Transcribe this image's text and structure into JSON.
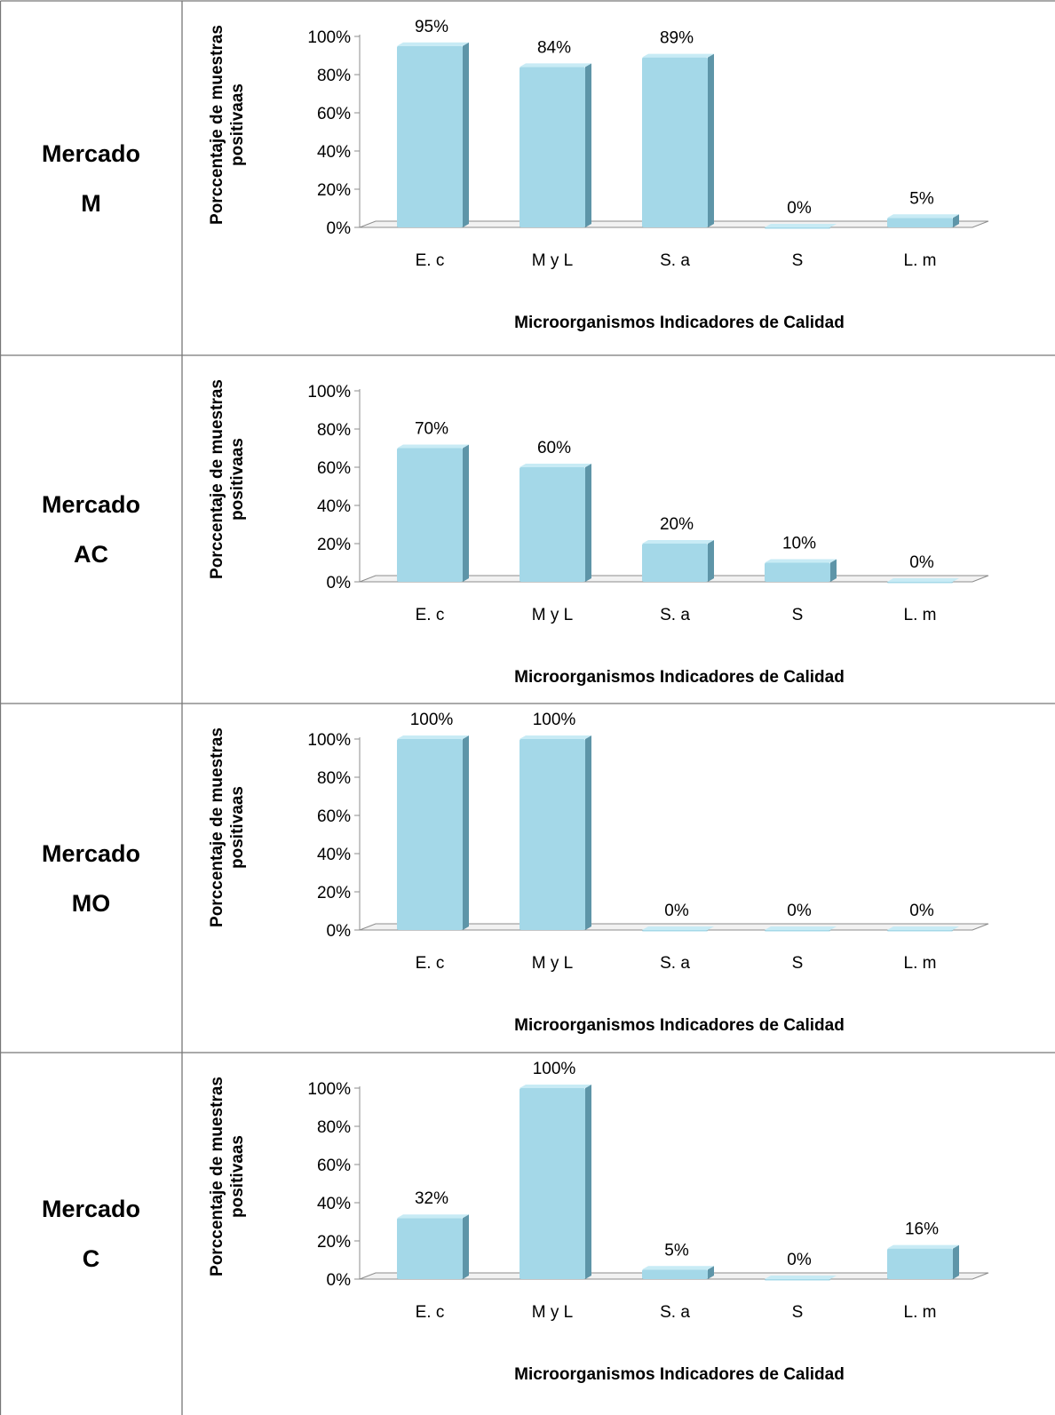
{
  "categories": [
    "E. c",
    "M y L",
    "S. a",
    "S",
    "L. m"
  ],
  "ylabel": "Porccentaje de muestras positivaas",
  "xlabel": "Microorganismos Indicadores de Calidad",
  "yticks": [
    "0%",
    "20%",
    "40%",
    "60%",
    "80%",
    "100%"
  ],
  "rows": [
    {
      "label_line1": "Mercado",
      "label_line2": "M"
    },
    {
      "label_line1": "Mercado",
      "label_line2": "AC"
    },
    {
      "label_line1": "Mercado",
      "label_line2": "MO"
    },
    {
      "label_line1": "Mercado",
      "label_line2": "C"
    }
  ],
  "colors": {
    "bar_front": "#a4d8e8",
    "bar_side": "#5e95a8",
    "bar_top": "#c8ebf5",
    "axis": "#8c8c8c"
  },
  "chart_data": [
    {
      "type": "bar",
      "categories": [
        "E. c",
        "M y L",
        "S. a",
        "S",
        "L. m"
      ],
      "values": [
        95,
        84,
        89,
        0,
        5
      ],
      "value_labels": [
        "95%",
        "84%",
        "89%",
        "0%",
        "5%"
      ],
      "xlabel": "Microorganismos Indicadores de Calidad",
      "ylabel": "Porccentaje de muestras positivaas",
      "ylim": [
        0,
        100
      ],
      "grid": false
    },
    {
      "type": "bar",
      "categories": [
        "E. c",
        "M y L",
        "S. a",
        "S",
        "L. m"
      ],
      "values": [
        70,
        60,
        20,
        10,
        0
      ],
      "value_labels": [
        "70%",
        "60%",
        "20%",
        "10%",
        "0%"
      ],
      "xlabel": "Microorganismos Indicadores de Calidad",
      "ylabel": "Porccentaje de muestras positivaas",
      "ylim": [
        0,
        100
      ],
      "grid": false
    },
    {
      "type": "bar",
      "categories": [
        "E. c",
        "M y L",
        "S. a",
        "S",
        "L. m"
      ],
      "values": [
        100,
        100,
        0,
        0,
        0
      ],
      "value_labels": [
        "100%",
        "100%",
        "0%",
        "0%",
        "0%"
      ],
      "xlabel": "Microorganismos Indicadores de Calidad",
      "ylabel": "Porccentaje de muestras positivaas",
      "ylim": [
        0,
        100
      ],
      "grid": false
    },
    {
      "type": "bar",
      "categories": [
        "E. c",
        "M y L",
        "S. a",
        "S",
        "L. m"
      ],
      "values": [
        32,
        100,
        5,
        0,
        16
      ],
      "value_labels": [
        "32%",
        "100%",
        "5%",
        "0%",
        "16%"
      ],
      "xlabel": "Microorganismos Indicadores de Calidad",
      "ylabel": "Porccentaje de muestras positivaas",
      "ylim": [
        0,
        100
      ],
      "grid": false
    }
  ]
}
